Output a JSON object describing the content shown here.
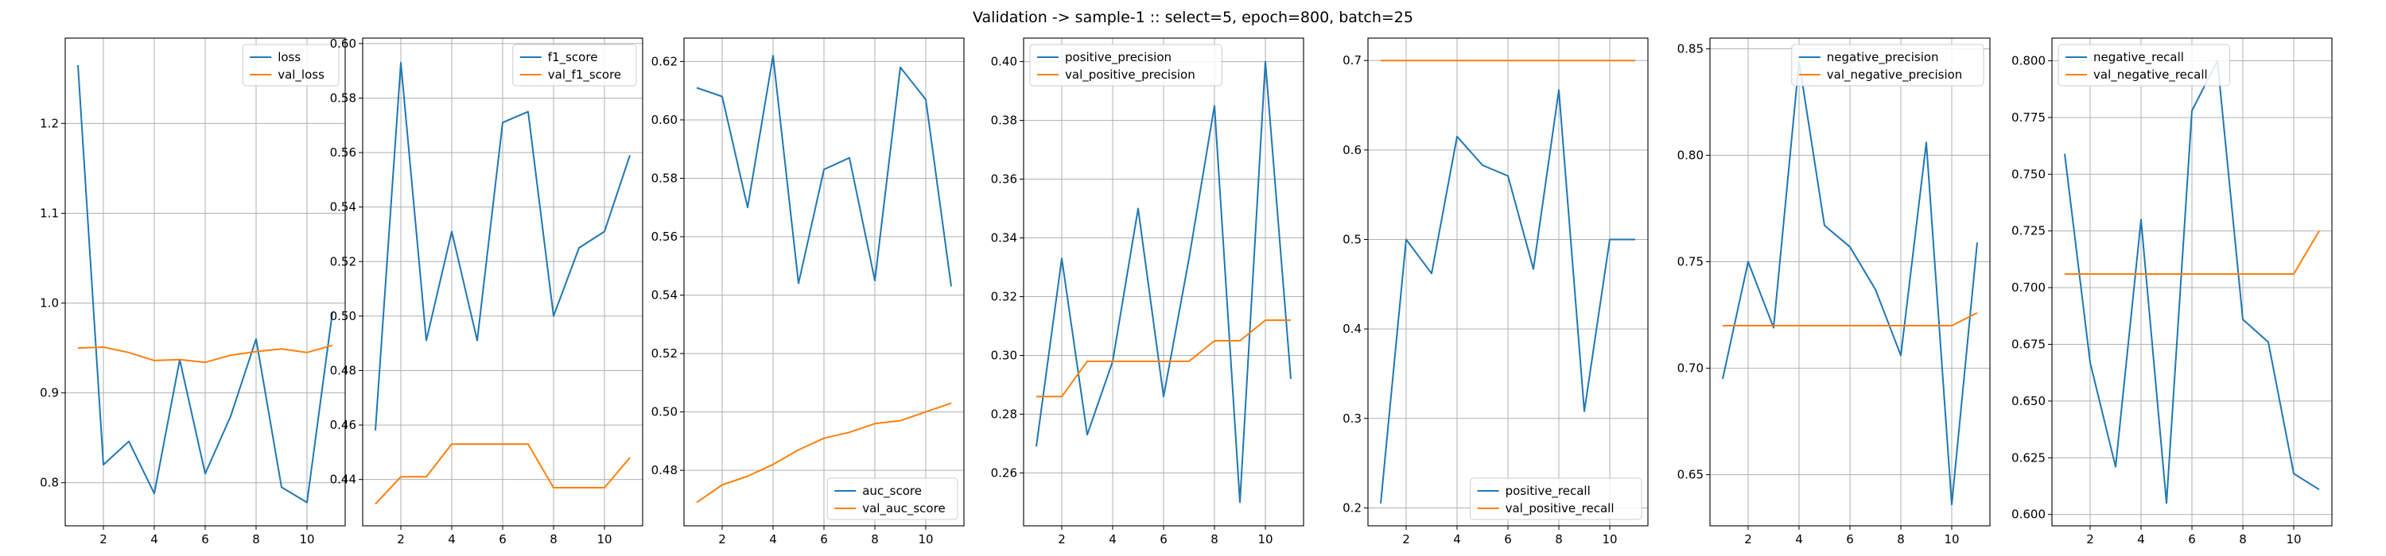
{
  "title": "Validation -> sample-1 :: select=5, epoch=800, batch=25",
  "colors": {
    "train": "#1f77b4",
    "val": "#ff7f0e",
    "grid": "#b0b0b0"
  },
  "chart_data": [
    {
      "type": "line",
      "x": [
        1,
        2,
        3,
        4,
        5,
        6,
        7,
        8,
        9,
        10,
        11
      ],
      "xticks": [
        2,
        4,
        6,
        8,
        10
      ],
      "xlim": [
        0.5,
        11.5
      ],
      "ylim": [
        0.752,
        1.295
      ],
      "yticks": [
        0.8,
        0.9,
        1.0,
        1.1,
        1.2
      ],
      "ytick_labels": [
        "0.8",
        "0.9",
        "1.0",
        "1.1",
        "1.2"
      ],
      "legend_loc": "top-right",
      "grid": true,
      "series": [
        {
          "name": "loss",
          "values": [
            1.265,
            0.82,
            0.846,
            0.788,
            0.937,
            0.81,
            0.874,
            0.96,
            0.795,
            0.778,
            0.99
          ]
        },
        {
          "name": "val_loss",
          "values": [
            0.95,
            0.951,
            0.945,
            0.936,
            0.937,
            0.934,
            0.942,
            0.946,
            0.949,
            0.945,
            0.953
          ]
        }
      ]
    },
    {
      "type": "line",
      "x": [
        1,
        2,
        3,
        4,
        5,
        6,
        7,
        8,
        9,
        10,
        11
      ],
      "xticks": [
        2,
        4,
        6,
        8,
        10
      ],
      "xlim": [
        0.5,
        11.5
      ],
      "ylim": [
        0.423,
        0.602
      ],
      "yticks": [
        0.44,
        0.46,
        0.48,
        0.5,
        0.52,
        0.54,
        0.56,
        0.58,
        0.6
      ],
      "ytick_labels": [
        "0.44",
        "0.46",
        "0.48",
        "0.50",
        "0.52",
        "0.54",
        "0.56",
        "0.58",
        "0.60"
      ],
      "legend_loc": "top-right",
      "grid": true,
      "series": [
        {
          "name": "f1_score",
          "values": [
            0.458,
            0.593,
            0.491,
            0.531,
            0.491,
            0.571,
            0.575,
            0.5,
            0.525,
            0.531,
            0.559
          ]
        },
        {
          "name": "val_f1_score",
          "values": [
            0.431,
            0.441,
            0.441,
            0.453,
            0.453,
            0.453,
            0.453,
            0.437,
            0.437,
            0.437,
            0.448
          ]
        }
      ]
    },
    {
      "type": "line",
      "x": [
        1,
        2,
        3,
        4,
        5,
        6,
        7,
        8,
        9,
        10,
        11
      ],
      "xticks": [
        2,
        4,
        6,
        8,
        10
      ],
      "xlim": [
        0.5,
        11.5
      ],
      "ylim": [
        0.461,
        0.628
      ],
      "yticks": [
        0.48,
        0.5,
        0.52,
        0.54,
        0.56,
        0.58,
        0.6,
        0.62
      ],
      "ytick_labels": [
        "0.48",
        "0.50",
        "0.52",
        "0.54",
        "0.56",
        "0.58",
        "0.60",
        "0.62"
      ],
      "legend_loc": "bottom-right",
      "grid": true,
      "series": [
        {
          "name": "auc_score",
          "values": [
            0.611,
            0.608,
            0.57,
            0.622,
            0.544,
            0.583,
            0.587,
            0.545,
            0.618,
            0.607,
            0.543
          ]
        },
        {
          "name": "val_auc_score",
          "values": [
            0.469,
            0.475,
            0.478,
            0.482,
            0.487,
            0.491,
            0.493,
            0.496,
            0.497,
            0.5,
            0.503
          ]
        }
      ]
    },
    {
      "type": "line",
      "x": [
        1,
        2,
        3,
        4,
        5,
        6,
        7,
        8,
        9,
        10,
        11
      ],
      "xticks": [
        2,
        4,
        6,
        8,
        10
      ],
      "xlim": [
        0.5,
        11.5
      ],
      "ylim": [
        0.242,
        0.408
      ],
      "yticks": [
        0.26,
        0.28,
        0.3,
        0.32,
        0.34,
        0.36,
        0.38,
        0.4
      ],
      "ytick_labels": [
        "0.26",
        "0.28",
        "0.30",
        "0.32",
        "0.34",
        "0.36",
        "0.38",
        "0.40"
      ],
      "legend_loc": "top-left",
      "grid": true,
      "series": [
        {
          "name": "positive_precision",
          "values": [
            0.269,
            0.333,
            0.273,
            0.298,
            0.35,
            0.286,
            0.333,
            0.385,
            0.25,
            0.4,
            0.292
          ]
        },
        {
          "name": "val_positive_precision",
          "values": [
            0.286,
            0.286,
            0.298,
            0.298,
            0.298,
            0.298,
            0.298,
            0.305,
            0.305,
            0.312,
            0.312
          ]
        }
      ]
    },
    {
      "type": "line",
      "x": [
        1,
        2,
        3,
        4,
        5,
        6,
        7,
        8,
        9,
        10,
        11
      ],
      "xticks": [
        2,
        4,
        6,
        8,
        10
      ],
      "xlim": [
        0.5,
        11.5
      ],
      "ylim": [
        0.18,
        0.725
      ],
      "yticks": [
        0.2,
        0.3,
        0.4,
        0.5,
        0.6,
        0.7
      ],
      "ytick_labels": [
        "0.2",
        "0.3",
        "0.4",
        "0.5",
        "0.6",
        "0.7"
      ],
      "legend_loc": "bottom-right",
      "grid": true,
      "series": [
        {
          "name": "positive_recall",
          "values": [
            0.205,
            0.5,
            0.462,
            0.615,
            0.583,
            0.571,
            0.467,
            0.667,
            0.308,
            0.5,
            0.5
          ]
        },
        {
          "name": "val_positive_recall",
          "values": [
            0.7,
            0.7,
            0.7,
            0.7,
            0.7,
            0.7,
            0.7,
            0.7,
            0.7,
            0.7,
            0.7
          ]
        }
      ]
    },
    {
      "type": "line",
      "x": [
        1,
        2,
        3,
        4,
        5,
        6,
        7,
        8,
        9,
        10,
        11
      ],
      "xticks": [
        2,
        4,
        6,
        8,
        10
      ],
      "xlim": [
        0.5,
        11.5
      ],
      "ylim": [
        0.626,
        0.855
      ],
      "yticks": [
        0.65,
        0.7,
        0.75,
        0.8,
        0.85
      ],
      "ytick_labels": [
        "0.65",
        "0.70",
        "0.75",
        "0.80",
        "0.85"
      ],
      "legend_loc": "top-right",
      "grid": true,
      "series": [
        {
          "name": "negative_precision",
          "values": [
            0.695,
            0.75,
            0.719,
            0.844,
            0.767,
            0.757,
            0.737,
            0.706,
            0.806,
            0.636,
            0.759
          ]
        },
        {
          "name": "val_negative_precision",
          "values": [
            0.72,
            0.72,
            0.72,
            0.72,
            0.72,
            0.72,
            0.72,
            0.72,
            0.72,
            0.72,
            0.726
          ]
        }
      ]
    },
    {
      "type": "line",
      "x": [
        1,
        2,
        3,
        4,
        5,
        6,
        7,
        8,
        9,
        10,
        11
      ],
      "xticks": [
        2,
        4,
        6,
        8,
        10
      ],
      "xlim": [
        0.5,
        11.5
      ],
      "ylim": [
        0.595,
        0.81
      ],
      "yticks": [
        0.6,
        0.625,
        0.65,
        0.675,
        0.7,
        0.725,
        0.75,
        0.775,
        0.8
      ],
      "ytick_labels": [
        "0.600",
        "0.625",
        "0.650",
        "0.675",
        "0.700",
        "0.725",
        "0.750",
        "0.775",
        "0.800"
      ],
      "legend_loc": "top-left",
      "grid": true,
      "series": [
        {
          "name": "negative_recall",
          "values": [
            0.759,
            0.667,
            0.621,
            0.73,
            0.605,
            0.778,
            0.8,
            0.686,
            0.676,
            0.618,
            0.611
          ]
        },
        {
          "name": "val_negative_recall",
          "values": [
            0.706,
            0.706,
            0.706,
            0.706,
            0.706,
            0.706,
            0.706,
            0.706,
            0.706,
            0.706,
            0.725
          ]
        }
      ]
    }
  ]
}
